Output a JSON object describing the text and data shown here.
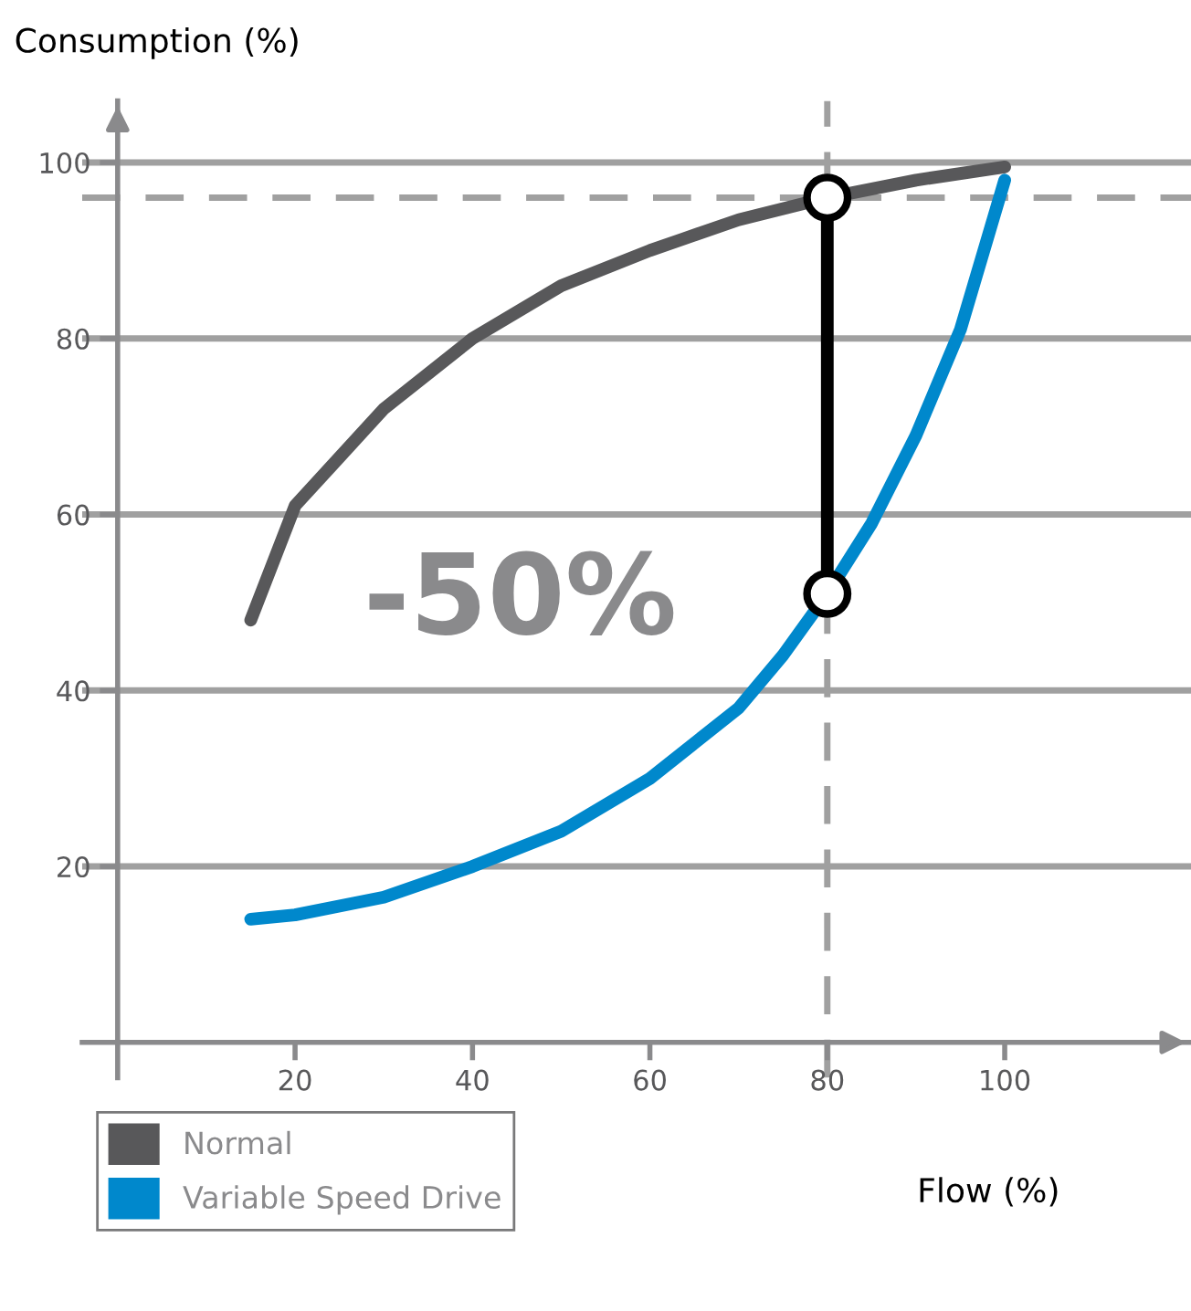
{
  "chart_data": {
    "type": "line",
    "xlabel": "Flow (%)",
    "ylabel": "Consumption (%)",
    "xlim": [
      -4,
      121
    ],
    "ylim": [
      -4,
      107
    ],
    "xticks": [
      20,
      40,
      60,
      80,
      100
    ],
    "yticks": [
      20,
      40,
      60,
      80,
      100
    ],
    "grid": "y",
    "legend": "bottom left",
    "line_style": "solid",
    "series": [
      {
        "name": "Normal",
        "color": "#58585a",
        "x": [
          15,
          20,
          30,
          40,
          50,
          60,
          70,
          80,
          90,
          100
        ],
        "values": [
          48,
          61,
          72,
          80,
          86,
          90,
          93.5,
          96,
          98,
          99.5
        ]
      },
      {
        "name": "Variable Speed Drive",
        "color": "#0088cc",
        "x": [
          15,
          20,
          30,
          40,
          50,
          60,
          70,
          75,
          80,
          85,
          90,
          95,
          100
        ],
        "values": [
          14,
          14.5,
          16.5,
          20,
          24,
          30,
          38,
          44,
          51,
          59,
          69,
          81,
          98
        ]
      },
      {
        "type": "line",
        "color": "#000000",
        "marker": "circle",
        "x": [
          80,
          80
        ],
        "values": [
          96,
          51
        ]
      }
    ],
    "ref_lines": [
      {
        "axis": "y",
        "value": 96,
        "color": "#a0a0a0",
        "line_style": "dashed"
      },
      {
        "axis": "x",
        "value": 80,
        "color": "#a0a0a0",
        "line_style": "dashed"
      }
    ],
    "annotations": [
      "-50%"
    ]
  }
}
